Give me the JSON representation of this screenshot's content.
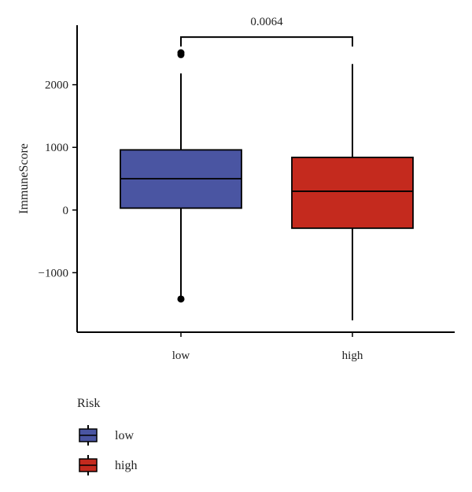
{
  "chart_data": {
    "type": "box",
    "title": "",
    "xlabel": "",
    "ylabel": "ImmuneScore",
    "ylim": [
      -1950,
      2950
    ],
    "yticks": [
      2000,
      1000,
      0,
      -1000
    ],
    "ytick_labels": [
      "2000",
      "1000",
      "0",
      "−1000"
    ],
    "categories": [
      "low",
      "high"
    ],
    "boxes": [
      {
        "name": "low",
        "color": "#4a55a2",
        "q1": 30,
        "median": 500,
        "q3": 960,
        "whisker_low": -1410,
        "whisker_high": 2180,
        "outliers": [
          2480,
          2510,
          -1420
        ]
      },
      {
        "name": "high",
        "color": "#c42a1e",
        "q1": -290,
        "median": 300,
        "q3": 840,
        "whisker_low": -1760,
        "whisker_high": 2330,
        "outliers": []
      }
    ],
    "comparison": {
      "groups": [
        "low",
        "high"
      ],
      "label": "0.0064",
      "y": 2760
    },
    "legend": {
      "title": "Risk",
      "position": "bottom-left",
      "entries": [
        {
          "label": "low",
          "color": "#4a55a2"
        },
        {
          "label": "high",
          "color": "#c42a1e"
        }
      ]
    }
  }
}
